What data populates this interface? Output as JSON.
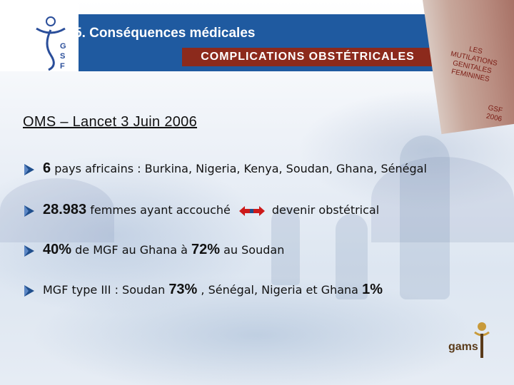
{
  "header": {
    "section_title": "5. Conséquences médicales",
    "subtitle": "COMPLICATIONS OBSTÉTRICALES",
    "logo_letters": "GSF"
  },
  "book": {
    "title_lines": [
      "LES",
      "MUTILATIONS",
      "GENITALES",
      "FEMININES"
    ],
    "corner_lines": [
      "GSF",
      "2006"
    ]
  },
  "source": "OMS – Lancet 3 Juin 2006",
  "bullets": [
    {
      "big": "6",
      "text": " pays africains  : Burkina, Nigeria, Kenya, Soudan, Ghana, Sénégal"
    },
    {
      "big": "28.983",
      "text": " femmes ayant accouché",
      "after": "devenir obstétrical"
    },
    {
      "big1": "40%",
      "text1": " de MGF au Ghana à ",
      "big2": "72%",
      "text2": " au Soudan"
    },
    {
      "text1": "MGF type III : Soudan ",
      "big1": "73%",
      "text2": " , Sénégal, Nigeria et Ghana ",
      "big2": "1%"
    }
  ],
  "footer_logo": "gams",
  "colors": {
    "header_band": "#1f5aa0",
    "subtitle_box": "#8c2a1c",
    "bullet_arrow": "#1f4e8c",
    "double_arrow": "#cc1a1a"
  }
}
